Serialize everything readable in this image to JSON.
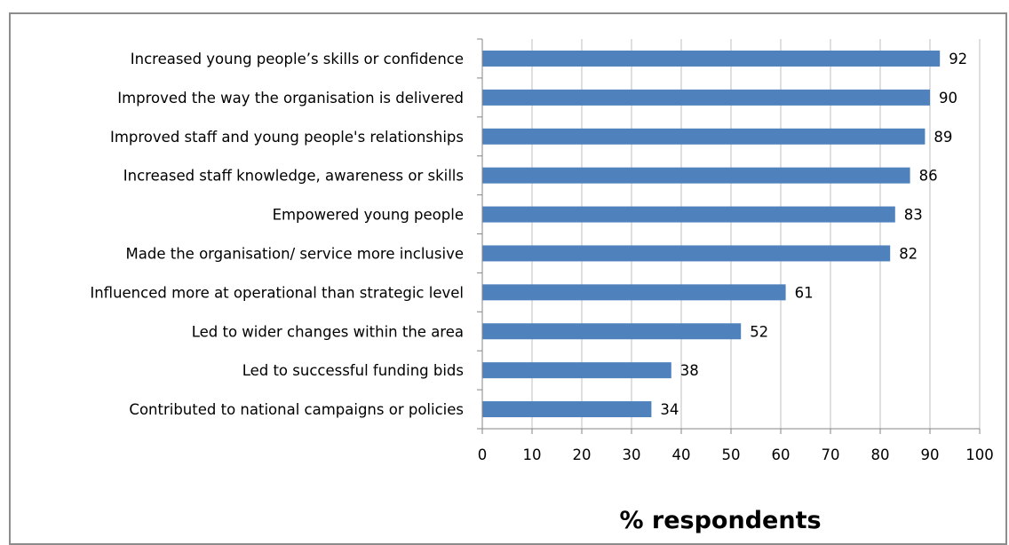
{
  "chart_data": {
    "type": "bar",
    "orientation": "horizontal",
    "categories": [
      "Increased young people’s skills or confidence",
      "Improved the way the organisation is delivered",
      "Improved staff and young people's relationships",
      "Increased staff knowledge, awareness or skills",
      "Empowered young people",
      "Made the organisation/ service more inclusive",
      "Influenced more at operational than strategic level",
      "Led to wider changes within the area",
      "Led to successful funding bids",
      "Contributed to national campaigns or policies"
    ],
    "values": [
      92,
      90,
      89,
      86,
      83,
      82,
      61,
      52,
      38,
      34
    ],
    "data_labels": [
      "92",
      "90",
      "89",
      "86",
      "83",
      "82",
      "61",
      "52",
      "38",
      "34"
    ],
    "xlabel": "% respondents",
    "xlim": [
      0,
      100
    ],
    "xticks": [
      "0",
      "10",
      "20",
      "30",
      "40",
      "50",
      "60",
      "70",
      "80",
      "90",
      "100"
    ],
    "grid": "vertical",
    "legend": "none",
    "bar_color": "#4f81bd"
  }
}
